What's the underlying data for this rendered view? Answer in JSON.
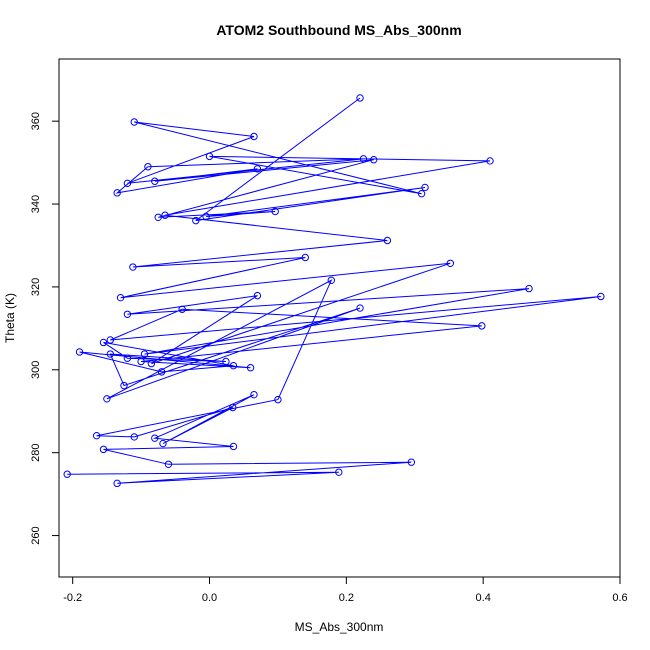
{
  "chart_data": {
    "type": "line",
    "title": "ATOM2 Southbound MS_Abs_300nm",
    "xlabel": "MS_Abs_300nm",
    "ylabel": "Theta (K)",
    "xlim": [
      -0.22,
      0.6
    ],
    "ylim": [
      250,
      375
    ],
    "xticks": [
      -0.2,
      0.0,
      0.2,
      0.4,
      0.6
    ],
    "xtick_labels": [
      "-0.2",
      "0.0",
      "0.2",
      "0.4",
      "0.6"
    ],
    "yticks": [
      260,
      280,
      300,
      320,
      340,
      360
    ],
    "ytick_labels": [
      "260",
      "280",
      "300",
      "320",
      "340",
      "360"
    ],
    "grid": false,
    "legend": "none",
    "color": "#0000ff",
    "marker": "open-circle",
    "series": [
      {
        "x": [
          -0.208,
          0.189,
          -0.135,
          0.295,
          -0.06,
          -0.155,
          0.035,
          -0.08,
          0.065,
          -0.068,
          0.034,
          -0.11,
          -0.165,
          0.1,
          0.178,
          -0.15,
          0.22,
          -0.125,
          -0.145,
          0.024,
          -0.12,
          -0.155,
          0.035,
          -0.07,
          -0.19,
          0.06,
          -0.1,
          0.398,
          -0.04,
          -0.145,
          0.572,
          -0.095,
          0.467,
          -0.12,
          0.07,
          -0.085,
          0.352,
          -0.13,
          0.14,
          -0.112,
          0.26,
          -0.065,
          0.41,
          0.0,
          0.31,
          -0.11,
          0.065,
          -0.12,
          0.225,
          -0.09,
          -0.135,
          0.07,
          -0.08,
          0.24,
          -0.075,
          0.096,
          -0.005,
          0.315,
          -0.02,
          0.22
        ],
        "y": [
          274.8,
          275.3,
          272.6,
          277.7,
          277.2,
          280.8,
          281.5,
          283.5,
          294.0,
          282.2,
          290.9,
          283.8,
          284.1,
          292.8,
          321.6,
          293.0,
          314.9,
          296.2,
          303.8,
          302.0,
          302.8,
          306.6,
          301.0,
          299.5,
          304.3,
          300.5,
          302.0,
          310.6,
          314.6,
          307.2,
          317.7,
          303.8,
          319.6,
          313.4,
          317.9,
          301.5,
          325.7,
          317.4,
          327.1,
          324.8,
          331.2,
          337.3,
          350.4,
          351.5,
          342.5,
          359.8,
          356.3,
          345.0,
          350.9,
          349.0,
          342.7,
          348.5,
          345.5,
          350.7,
          336.8,
          338.2,
          337.0,
          344.0,
          336.0,
          365.6
        ]
      }
    ]
  }
}
